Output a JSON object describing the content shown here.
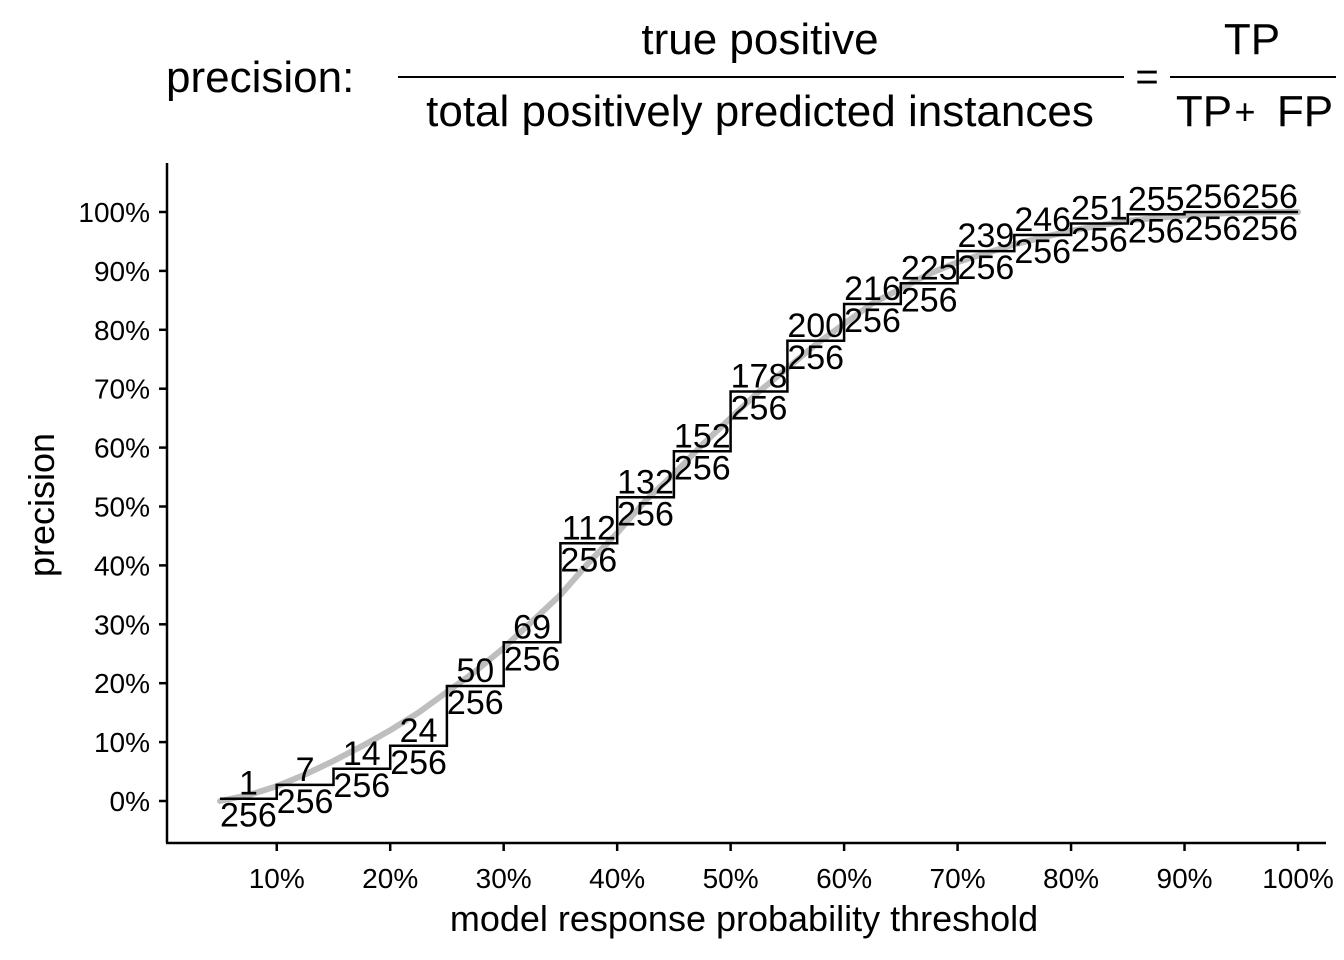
{
  "chart_data": {
    "type": "line",
    "title": {
      "prefix": "precision:",
      "numerator": "true positive",
      "denominator": "total positively predicted instances",
      "equals": "=",
      "tp_numerator": "TP",
      "tp_denominator_tp": "TP",
      "plus": "+",
      "tp_denominator_fp": "FP"
    },
    "xlabel": "model response probability threshold",
    "ylabel": "precision",
    "xlim": [
      0.01,
      1.0
    ],
    "ylim": [
      -0.075,
      1.08
    ],
    "x_ticks": [
      {
        "value": 0.1,
        "label": "10%"
      },
      {
        "value": 0.2,
        "label": "20%"
      },
      {
        "value": 0.3,
        "label": "30%"
      },
      {
        "value": 0.4,
        "label": "40%"
      },
      {
        "value": 0.5,
        "label": "50%"
      },
      {
        "value": 0.6,
        "label": "60%"
      },
      {
        "value": 0.7,
        "label": "70%"
      },
      {
        "value": 0.8,
        "label": "80%"
      },
      {
        "value": 0.9,
        "label": "90%"
      },
      {
        "value": 1.0,
        "label": "100%"
      }
    ],
    "y_ticks": [
      {
        "value": 0.0,
        "label": "0%"
      },
      {
        "value": 0.1,
        "label": "10%"
      },
      {
        "value": 0.2,
        "label": "20%"
      },
      {
        "value": 0.3,
        "label": "30%"
      },
      {
        "value": 0.4,
        "label": "40%"
      },
      {
        "value": 0.5,
        "label": "50%"
      },
      {
        "value": 0.6,
        "label": "60%"
      },
      {
        "value": 0.7,
        "label": "70%"
      },
      {
        "value": 0.8,
        "label": "80%"
      },
      {
        "value": 0.9,
        "label": "90%"
      },
      {
        "value": 1.0,
        "label": "100%"
      }
    ],
    "curve": {
      "color": "#bebebe",
      "x": [
        0.05,
        0.075,
        0.1,
        0.125,
        0.15,
        0.175,
        0.2,
        0.225,
        0.25,
        0.275,
        0.3,
        0.325,
        0.35,
        0.375,
        0.4,
        0.425,
        0.45,
        0.475,
        0.5,
        0.525,
        0.55,
        0.575,
        0.6,
        0.625,
        0.65,
        0.675,
        0.7,
        0.725,
        0.75,
        0.775,
        0.8,
        0.825,
        0.85,
        0.875,
        0.9,
        0.925,
        0.95,
        0.975,
        1.0
      ],
      "y": [
        0.0,
        0.01,
        0.025,
        0.045,
        0.068,
        0.093,
        0.12,
        0.15,
        0.185,
        0.22,
        0.26,
        0.305,
        0.35,
        0.405,
        0.455,
        0.51,
        0.555,
        0.605,
        0.65,
        0.695,
        0.735,
        0.775,
        0.81,
        0.845,
        0.87,
        0.895,
        0.915,
        0.93,
        0.945,
        0.957,
        0.968,
        0.977,
        0.985,
        0.99,
        0.994,
        0.997,
        0.999,
        1.0,
        1.0
      ]
    },
    "steps": {
      "color": "#000000",
      "segments": [
        {
          "x0": 0.05,
          "x1": 0.1,
          "tp": "1",
          "total": "256",
          "y": 0.0039
        },
        {
          "x0": 0.1,
          "x1": 0.15,
          "tp": "7",
          "total": "256",
          "y": 0.0273
        },
        {
          "x0": 0.15,
          "x1": 0.2,
          "tp": "14",
          "total": "256",
          "y": 0.0547
        },
        {
          "x0": 0.2,
          "x1": 0.25,
          "tp": "24",
          "total": "256",
          "y": 0.0938
        },
        {
          "x0": 0.25,
          "x1": 0.3,
          "tp": "50",
          "total": "256",
          "y": 0.1953
        },
        {
          "x0": 0.3,
          "x1": 0.35,
          "tp": "69",
          "total": "256",
          "y": 0.2695
        },
        {
          "x0": 0.35,
          "x1": 0.4,
          "tp": "112",
          "total": "256",
          "y": 0.4375
        },
        {
          "x0": 0.4,
          "x1": 0.45,
          "tp": "132",
          "total": "256",
          "y": 0.5156
        },
        {
          "x0": 0.45,
          "x1": 0.5,
          "tp": "152",
          "total": "256",
          "y": 0.5938
        },
        {
          "x0": 0.5,
          "x1": 0.55,
          "tp": "178",
          "total": "256",
          "y": 0.6953
        },
        {
          "x0": 0.55,
          "x1": 0.6,
          "tp": "200",
          "total": "256",
          "y": 0.7813
        },
        {
          "x0": 0.6,
          "x1": 0.65,
          "tp": "216",
          "total": "256",
          "y": 0.8438
        },
        {
          "x0": 0.65,
          "x1": 0.7,
          "tp": "225",
          "total": "256",
          "y": 0.8789
        },
        {
          "x0": 0.7,
          "x1": 0.75,
          "tp": "239",
          "total": "256",
          "y": 0.9336
        },
        {
          "x0": 0.75,
          "x1": 0.8,
          "tp": "246",
          "total": "256",
          "y": 0.9609
        },
        {
          "x0": 0.8,
          "x1": 0.85,
          "tp": "251",
          "total": "256",
          "y": 0.9805
        },
        {
          "x0": 0.85,
          "x1": 0.9,
          "tp": "255",
          "total": "256",
          "y": 0.9961
        },
        {
          "x0": 0.9,
          "x1": 0.95,
          "tp": "256",
          "total": "256",
          "y": 1.0
        },
        {
          "x0": 0.95,
          "x1": 1.0,
          "tp": "256",
          "total": "256",
          "y": 1.0
        }
      ]
    },
    "grid": false,
    "legend": "none"
  }
}
